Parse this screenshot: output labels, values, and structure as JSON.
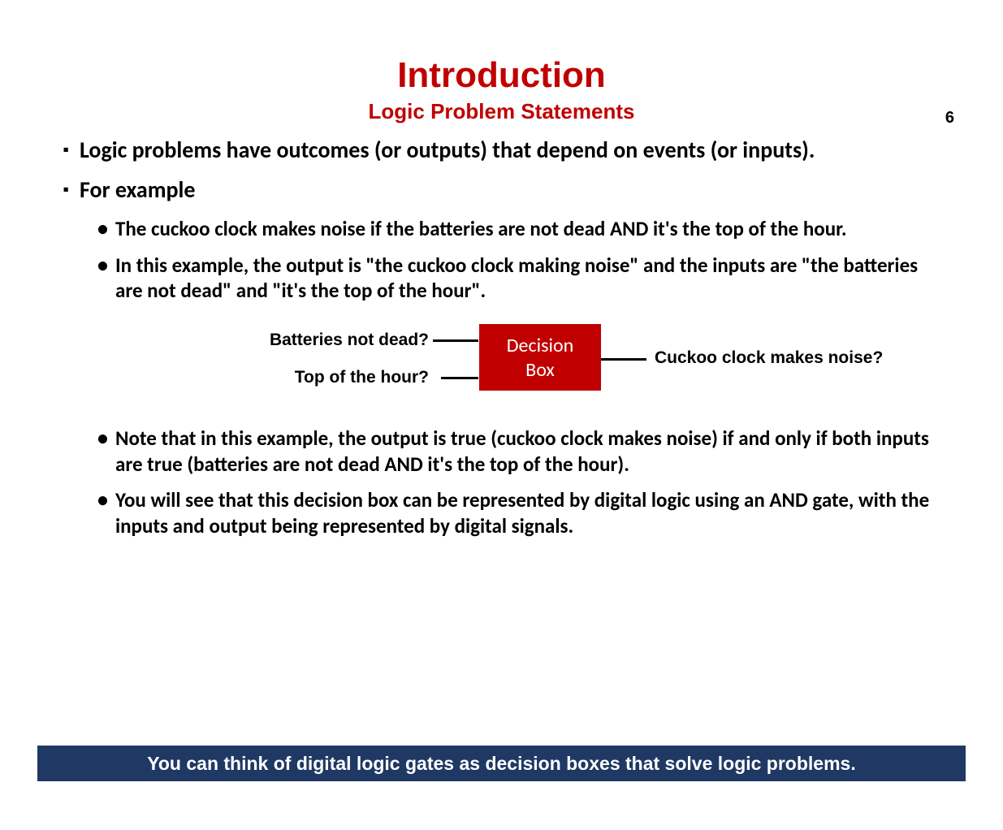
{
  "page_number": "6",
  "title": {
    "main": "Introduction",
    "sub": "Logic Problem Statements"
  },
  "colors": {
    "accent": "#c00000",
    "footer_bg": "#1f3864",
    "footer_fg": "#ffffff",
    "text": "#000000",
    "bg": "#ffffff"
  },
  "typography": {
    "title_main_fontsize": 44,
    "title_sub_fontsize": 26,
    "square_bullet_fontsize": 28,
    "round_bullet_fontsize": 25,
    "diagram_label_fontsize": 21,
    "footer_fontsize": 23,
    "page_number_fontsize": 20
  },
  "bullets_top": [
    "Logic problems have outcomes (or outputs) that depend on events (or inputs).",
    "For example"
  ],
  "sub_bullets_top": [
    "The cuckoo clock makes noise if the batteries are not dead AND it's the top of the hour.",
    "In this example, the output is \"the cuckoo clock making noise\" and the inputs are \"the batteries are not dead\" and \"it's the top of the hour\"."
  ],
  "diagram": {
    "input1": "Batteries not dead?",
    "input2": "Top of the hour?",
    "box_line1": "Decision",
    "box_line2": "Box",
    "box_color": "#c00000",
    "box_text_color": "#ffffff",
    "line_color": "#000000",
    "output": "Cuckoo clock makes noise?"
  },
  "sub_bullets_bottom": [
    "Note that in this example, the output is true (cuckoo clock makes noise) if and only if both inputs are true (batteries are not dead AND it's the top of the hour).",
    "You will see that this decision box can be represented by digital logic using an AND gate, with the inputs and output being represented by digital signals."
  ],
  "footer": "You can think of digital logic gates as decision boxes that solve logic problems."
}
